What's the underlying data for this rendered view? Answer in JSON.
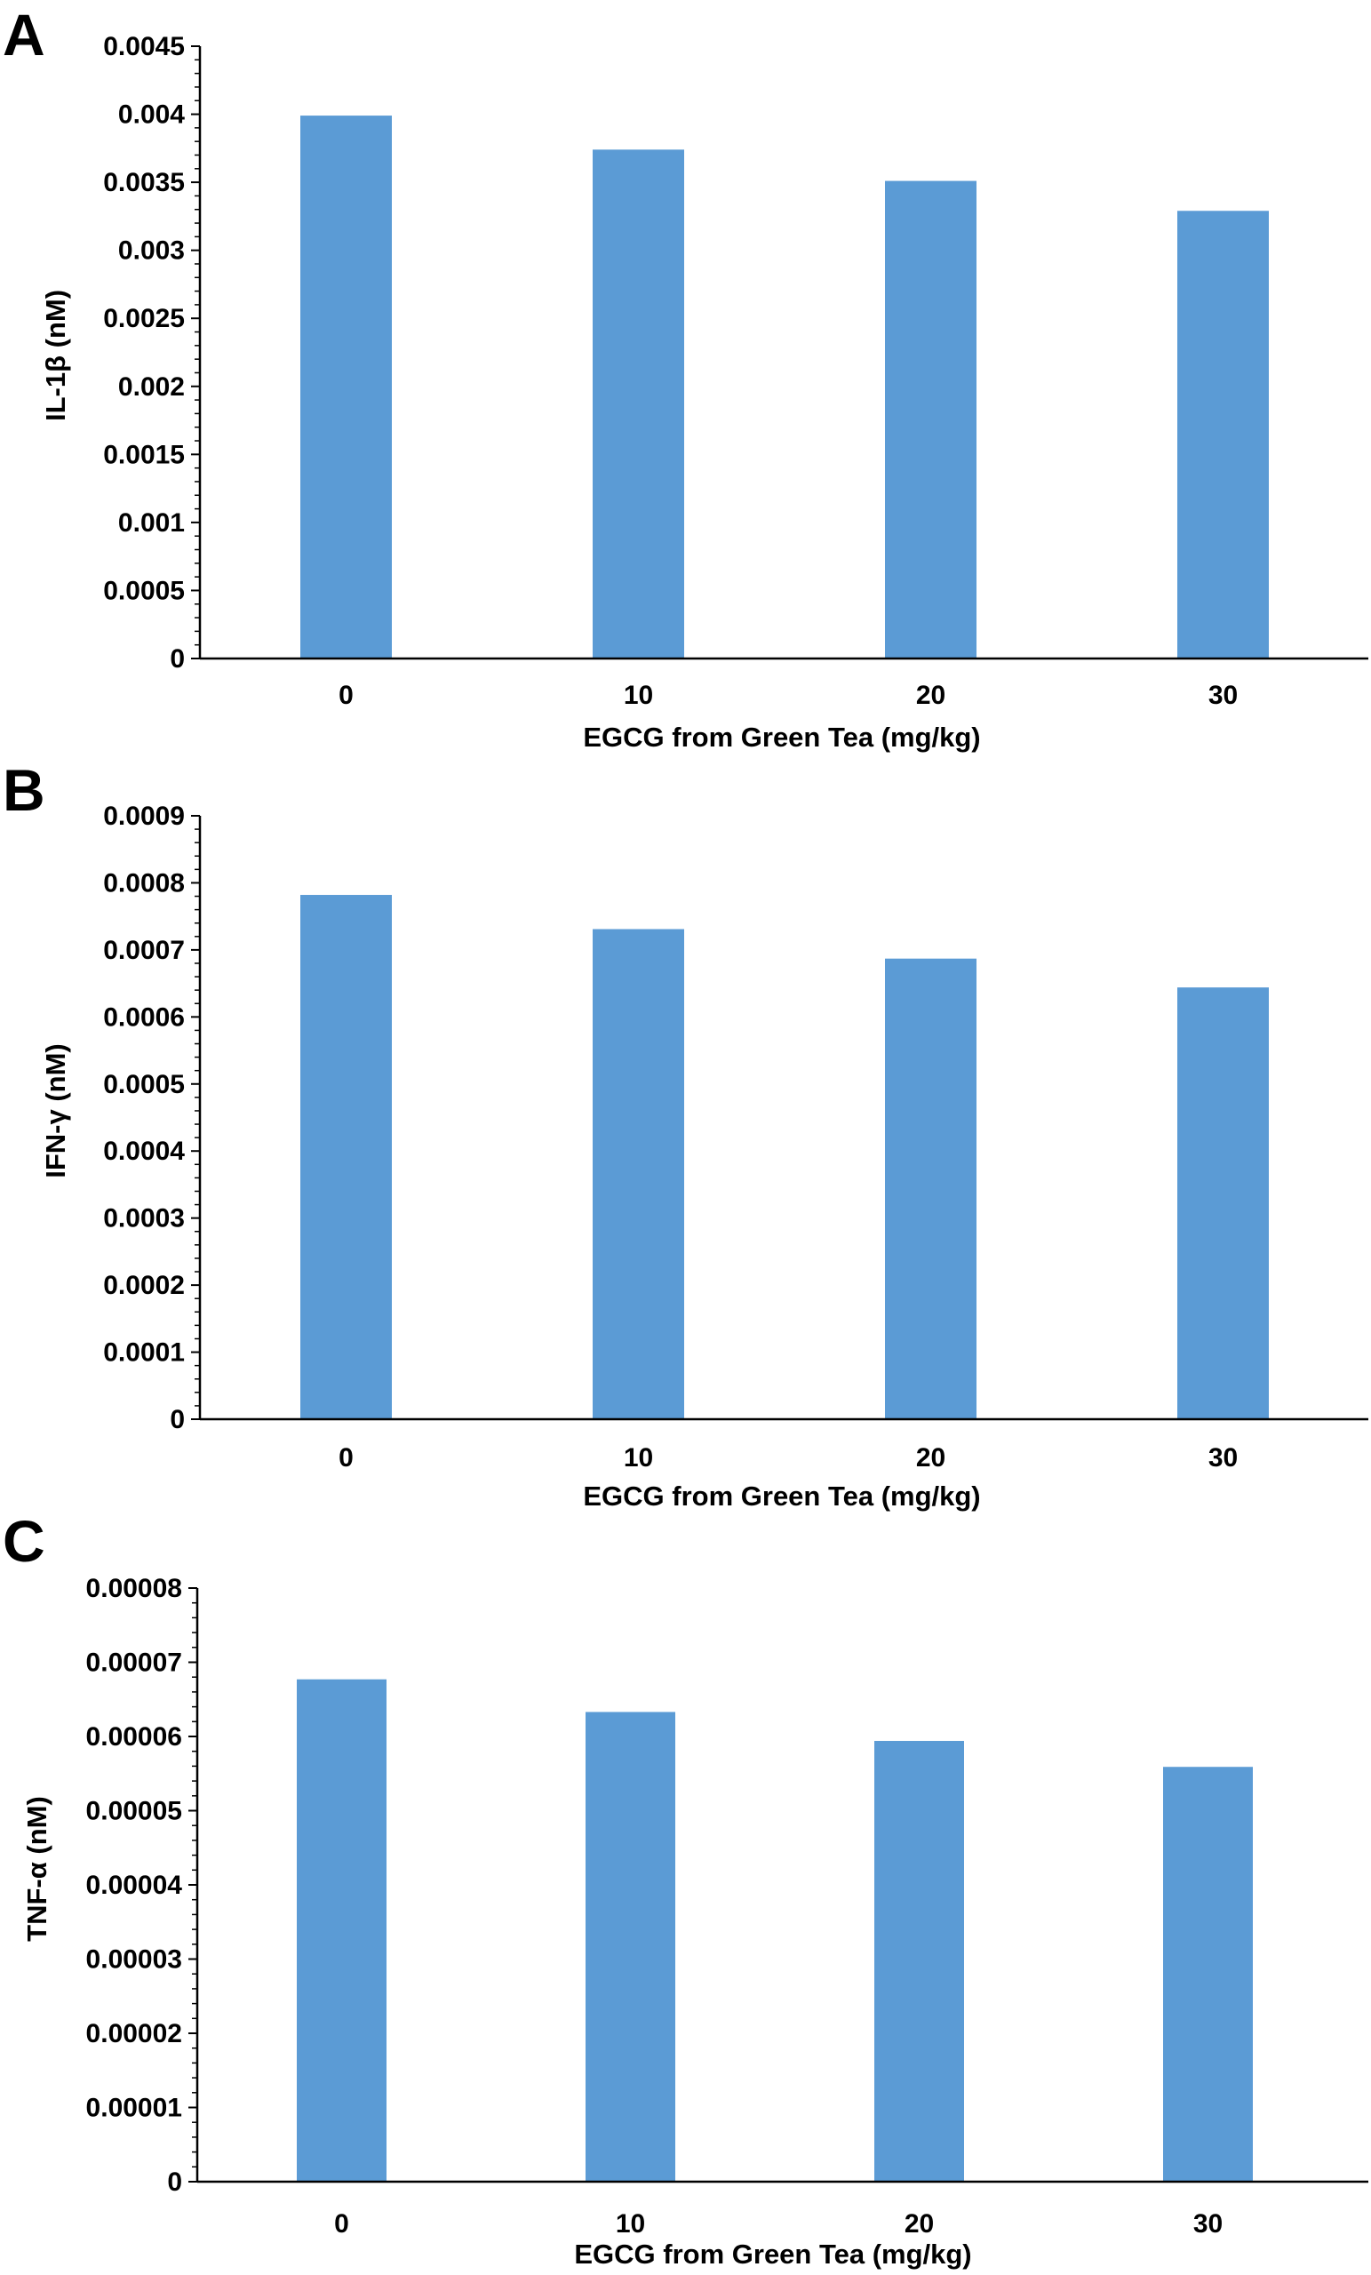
{
  "figure": {
    "bar_color": "#5B9BD5",
    "axis_color": "#000000"
  },
  "chart_data": [
    {
      "panel": "A",
      "type": "bar",
      "categories": [
        "0",
        "10",
        "20",
        "30"
      ],
      "series": [
        {
          "values": [
            0.00399,
            0.00374,
            0.00351,
            0.00329
          ]
        }
      ],
      "xlabel": "EGCG from Green Tea (mg/kg)",
      "ylabel": "IL-1β (nM)",
      "ylim": [
        0,
        0.0045
      ],
      "yticks": [
        "0",
        "0.0005",
        "0.001",
        "0.0015",
        "0.002",
        "0.0025",
        "0.003",
        "0.0035",
        "0.004",
        "0.0045"
      ],
      "grid": false,
      "legend": "none"
    },
    {
      "panel": "B",
      "type": "bar",
      "categories": [
        "0",
        "10",
        "20",
        "30"
      ],
      "series": [
        {
          "values": [
            0.000782,
            0.000731,
            0.000687,
            0.000644
          ]
        }
      ],
      "xlabel": "EGCG from Green Tea (mg/kg)",
      "ylabel": "IFN-γ (nM)",
      "ylim": [
        0,
        0.0009
      ],
      "yticks": [
        "0",
        "0.0001",
        "0.0002",
        "0.0003",
        "0.0004",
        "0.0005",
        "0.0006",
        "0.0007",
        "0.0008",
        "0.0009"
      ],
      "grid": false,
      "legend": "none"
    },
    {
      "panel": "C",
      "type": "bar",
      "categories": [
        "0",
        "10",
        "20",
        "30"
      ],
      "series": [
        {
          "values": [
            6.77e-05,
            6.33e-05,
            5.94e-05,
            5.59e-05
          ]
        }
      ],
      "xlabel": "EGCG from Green Tea (mg/kg)",
      "ylabel": "TNF-α (nM)",
      "ylim": [
        0,
        8e-05
      ],
      "yticks": [
        "0",
        "0.00001",
        "0.00002",
        "0.00003",
        "0.00004",
        "0.00005",
        "0.00006",
        "0.00007",
        "0.00008"
      ],
      "grid": false,
      "legend": "none"
    }
  ]
}
